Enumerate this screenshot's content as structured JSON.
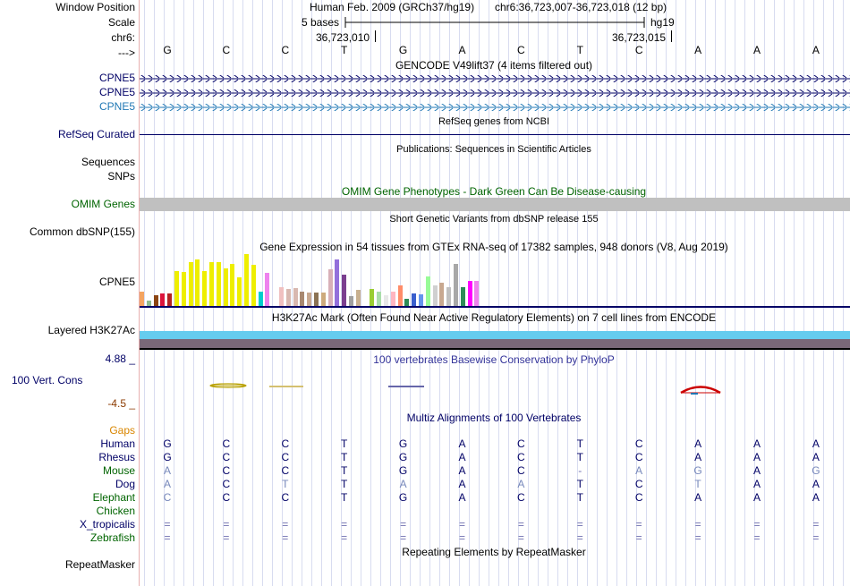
{
  "header": {
    "assembly": "Human Feb. 2009 (GRCh37/hg19)",
    "position": "chr6:36,723,007-36,723,018 (12 bp)",
    "scale_text": "5 bases",
    "db": "hg19",
    "coord_left": "36,723,010",
    "coord_right": "36,723,015",
    "bases": [
      "G",
      "C",
      "C",
      "T",
      "G",
      "A",
      "C",
      "T",
      "C",
      "A",
      "A",
      "A"
    ]
  },
  "labels": {
    "window_position": "Window Position",
    "scale": "Scale",
    "chr": "chr6:",
    "arrow": "--->",
    "cpne5_1": "CPNE5",
    "cpne5_2": "CPNE5",
    "cpne5_3": "CPNE5",
    "refseq": "RefSeq Curated",
    "sequences": "Sequences",
    "snps": "SNPs",
    "omim": "OMIM Genes",
    "dbsnp": "Common dbSNP(155)",
    "gtex_gene": "CPNE5",
    "h3k27ac": "Layered H3K27Ac",
    "phylop_max": "4.88 _",
    "phylop": "100 Vert. Cons",
    "phylop_min": "-4.5 _",
    "gaps": "Gaps",
    "repeatmasker": "RepeatMasker"
  },
  "track_titles": {
    "gencode": "GENCODE V49lift37 (4 items filtered out)",
    "refseq": "RefSeq genes from NCBI",
    "publications": "Publications: Sequences in Scientific Articles",
    "omim": "OMIM Gene Phenotypes - Dark Green Can Be Disease-causing",
    "dbsnp": "Short Genetic Variants from dbSNP release 155",
    "gtex": "Gene Expression in 54 tissues from GTEx RNA-seq of 17382 samples, 948 donors (V8, Aug 2019)",
    "h3k27ac": "H3K27Ac Mark (Often Found Near Active Regulatory Elements) on 7 cell lines from ENCODE",
    "phylop": "100 vertebrates Basewise Conservation by PhyloP",
    "multiz": "Multiz Alignments of 100 Vertebrates",
    "repeatmasker": "Repeating Elements by RepeatMasker"
  },
  "gtex_bars": [
    {
      "color": "#f4a460",
      "value": 0.28
    },
    {
      "color": "#8fbc8f",
      "value": 0.1
    },
    {
      "color": "#8b4513",
      "value": 0.2
    },
    {
      "color": "#dc143c",
      "value": 0.24
    },
    {
      "color": "#b22222",
      "value": 0.24
    },
    {
      "color": "#eeee00",
      "value": 0.68
    },
    {
      "color": "#eeee00",
      "value": 0.66
    },
    {
      "color": "#eeee00",
      "value": 0.84
    },
    {
      "color": "#eeee00",
      "value": 0.89
    },
    {
      "color": "#eeee00",
      "value": 0.67
    },
    {
      "color": "#eeee00",
      "value": 0.85
    },
    {
      "color": "#eeee00",
      "value": 0.84
    },
    {
      "color": "#eeee00",
      "value": 0.73
    },
    {
      "color": "#eeee00",
      "value": 0.81
    },
    {
      "color": "#eeee00",
      "value": 0.56
    },
    {
      "color": "#eeee00",
      "value": 1.0
    },
    {
      "color": "#eeee00",
      "value": 0.79
    },
    {
      "color": "#00cdcd",
      "value": 0.28
    },
    {
      "color": "#ee82ee",
      "value": 0.64
    },
    {
      "color": "#ffffff",
      "value": 0.0
    },
    {
      "color": "#f0c0c0",
      "value": 0.37
    },
    {
      "color": "#d8b8b0",
      "value": 0.33
    },
    {
      "color": "#d8b8b0",
      "value": 0.35
    },
    {
      "color": "#a88870",
      "value": 0.28
    },
    {
      "color": "#c8a890",
      "value": 0.25
    },
    {
      "color": "#8b7355",
      "value": 0.25
    },
    {
      "color": "#cdaa7d",
      "value": 0.25
    },
    {
      "color": "#d8b0b8",
      "value": 0.7
    },
    {
      "color": "#9370db",
      "value": 0.9
    },
    {
      "color": "#7b3f8f",
      "value": 0.61
    },
    {
      "color": "#a0a0a0",
      "value": 0.19
    },
    {
      "color": "#c8b090",
      "value": 0.31
    },
    {
      "color": "#ffffff",
      "value": 0.0
    },
    {
      "color": "#9acd32",
      "value": 0.33
    },
    {
      "color": "#aaddaa",
      "value": 0.28
    },
    {
      "color": "#e8e8e8",
      "value": 0.21
    },
    {
      "color": "#ffb6c1",
      "value": 0.27
    },
    {
      "color": "#ff8c69",
      "value": 0.4
    },
    {
      "color": "#2e8b57",
      "value": 0.13
    },
    {
      "color": "#3a5fcd",
      "value": 0.24
    },
    {
      "color": "#6495ed",
      "value": 0.22
    },
    {
      "color": "#98fb98",
      "value": 0.57
    },
    {
      "color": "#d0d0d0",
      "value": 0.4
    },
    {
      "color": "#c8a890",
      "value": 0.45
    },
    {
      "color": "#c0c0c0",
      "value": 0.37
    },
    {
      "color": "#a8a8a8",
      "value": 0.81
    },
    {
      "color": "#2e8b57",
      "value": 0.37
    },
    {
      "color": "#ff00ff",
      "value": 0.49
    },
    {
      "color": "#ee82ee",
      "value": 0.49
    }
  ],
  "multiz": {
    "species": [
      {
        "name": "Human",
        "color": "#000066",
        "bases": [
          "G",
          "C",
          "C",
          "T",
          "G",
          "A",
          "C",
          "T",
          "C",
          "A",
          "A",
          "A"
        ]
      },
      {
        "name": "Rhesus",
        "color": "#000066",
        "bases": [
          "G",
          "C",
          "C",
          "T",
          "G",
          "A",
          "C",
          "T",
          "C",
          "A",
          "A",
          "A"
        ]
      },
      {
        "name": "Mouse",
        "color": "#006400",
        "bases": [
          "A",
          "C",
          "C",
          "T",
          "G",
          "A",
          "C",
          "-",
          "A",
          "G",
          "A",
          "G"
        ]
      },
      {
        "name": "Dog",
        "color": "#000066",
        "bases": [
          "A",
          "C",
          "T",
          "T",
          "A",
          "A",
          "A",
          "T",
          "C",
          "T",
          "A",
          "A"
        ]
      },
      {
        "name": "Elephant",
        "color": "#006400",
        "bases": [
          "C",
          "C",
          "C",
          "T",
          "G",
          "A",
          "C",
          "T",
          "C",
          "A",
          "A",
          "A"
        ]
      },
      {
        "name": "Chicken",
        "color": "#006400",
        "bases": [
          "",
          "",
          "",
          "",
          "",
          "",
          "",
          "",
          "",
          "",
          "",
          ""
        ]
      },
      {
        "name": "X_tropicalis",
        "color": "#000066",
        "bases": [
          "=",
          "=",
          "=",
          "=",
          "=",
          "=",
          "=",
          "=",
          "=",
          "=",
          "=",
          "="
        ]
      },
      {
        "name": "Zebrafish",
        "color": "#006400",
        "bases": [
          "=",
          "=",
          "=",
          "=",
          "=",
          "=",
          "=",
          "=",
          "=",
          "=",
          "=",
          "="
        ]
      }
    ]
  }
}
